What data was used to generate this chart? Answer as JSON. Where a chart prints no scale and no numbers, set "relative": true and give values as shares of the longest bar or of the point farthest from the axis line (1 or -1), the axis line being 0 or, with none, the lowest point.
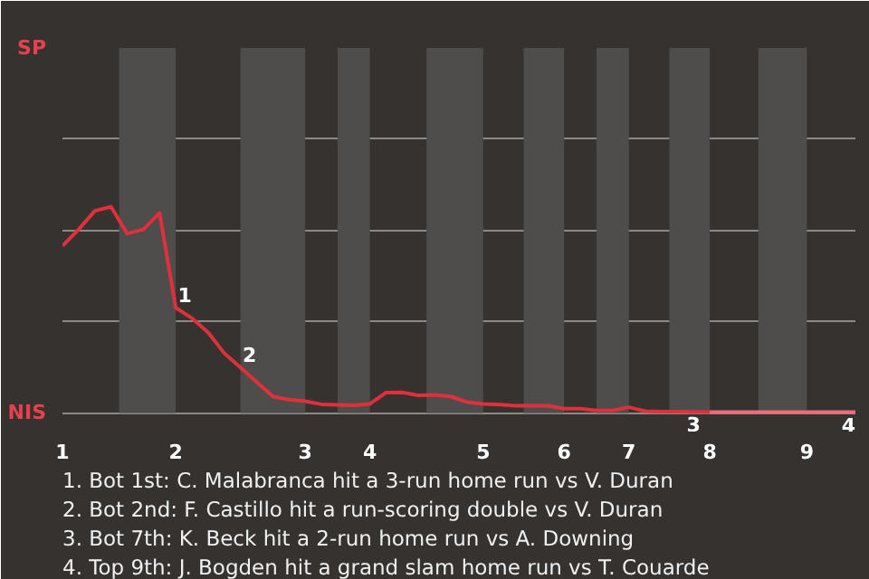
{
  "chart_data": {
    "type": "line",
    "relative": true,
    "categories": [
      "1",
      null,
      null,
      null,
      null,
      null,
      null,
      "2",
      null,
      null,
      null,
      null,
      null,
      null,
      null,
      "3",
      null,
      null,
      null,
      "4",
      null,
      null,
      null,
      null,
      null,
      null,
      "5",
      null,
      null,
      null,
      null,
      "6",
      null,
      null,
      null,
      "7",
      null,
      null,
      null,
      null,
      "8",
      null,
      null,
      null,
      null,
      null,
      "9",
      null,
      null,
      null
    ],
    "ylim": [
      -0.09,
      1.77
    ],
    "grid": "y",
    "marker": "none",
    "line_style": "solid",
    "series": [
      {
        "color": "#e0303c",
        "values": [
          0.81,
          0.89,
          0.98,
          1,
          0.87,
          0.89,
          0.97,
          0.51,
          0.46,
          0.39,
          0.29,
          0.22,
          0.15,
          0.08,
          0.065,
          0.057,
          0.042,
          0.039,
          0.037,
          0.044,
          0.099,
          0.1,
          0.085,
          0.088,
          0.08,
          0.053,
          0.044,
          0.041,
          0.035,
          0.035,
          0.035,
          0.021,
          0.021,
          0.012,
          0.012,
          0.028,
          0.009,
          0.007,
          0.006,
          0.005,
          0.004,
          null,
          null,
          null,
          null,
          null,
          null,
          null,
          null,
          null
        ]
      },
      {
        "color": "#f06a78",
        "values": [
          null,
          null,
          null,
          null,
          null,
          null,
          null,
          null,
          null,
          null,
          null,
          null,
          null,
          null,
          null,
          null,
          null,
          null,
          null,
          null,
          null,
          null,
          null,
          null,
          null,
          null,
          null,
          null,
          null,
          null,
          null,
          null,
          null,
          null,
          null,
          null,
          null,
          null,
          null,
          null,
          0.004,
          0.004,
          0.004,
          0.004,
          0.004,
          0.004,
          0.004,
          0.004,
          0.004,
          0.004
        ]
      }
    ],
    "annotations": [
      {
        "text": "1",
        "y": 0.51
      },
      {
        "text": "2",
        "y": 0.22
      },
      {
        "text": "3",
        "y": 0.005
      },
      {
        "text": "4",
        "y": 0.004
      },
      "SP",
      "NIS",
      "1. Bot 1st: C. Malabranca hit a 3-run home run vs V. Duran",
      "2. Bot 2nd: F. Castillo hit a run-scoring double vs V. Duran",
      "3. Bot 7th: K. Beck hit a 2-run home run vs A. Downing",
      "4. Top 9th: J. Bogden hit a grand slam home run vs T. Couarde"
    ]
  }
}
